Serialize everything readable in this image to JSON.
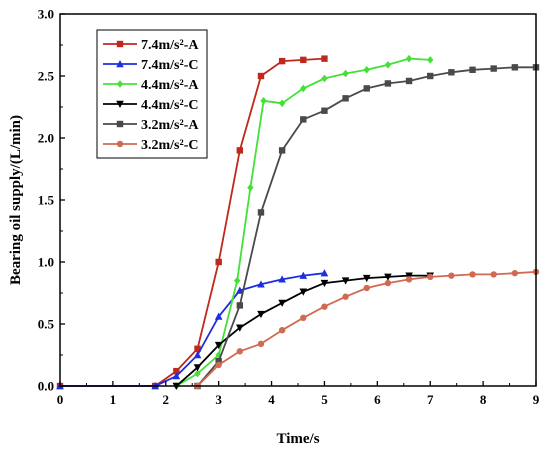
{
  "chart_data": {
    "type": "line",
    "xlabel": "Time/s",
    "ylabel": "Bearing oil supply/(L/min)",
    "xlim": [
      0,
      9
    ],
    "ylim": [
      0,
      3.0
    ],
    "xticks": [
      0,
      1,
      2,
      3,
      4,
      5,
      6,
      7,
      8,
      9
    ],
    "yticks": [
      0.0,
      0.5,
      1.0,
      1.5,
      2.0,
      2.5,
      3.0
    ],
    "ytick_labels": [
      "0.0",
      "0.5",
      "1.0",
      "1.5",
      "2.0",
      "2.5",
      "3.0"
    ],
    "legend_position": "top-left",
    "grid": false,
    "series": [
      {
        "name": "7.4m/s²-A",
        "color": "#c0281c",
        "marker": "square",
        "x": [
          0,
          1.8,
          2.2,
          2.6,
          3.0,
          3.4,
          3.8,
          4.2,
          4.6,
          5.0
        ],
        "y": [
          0,
          0,
          0.12,
          0.3,
          1.0,
          1.9,
          2.5,
          2.62,
          2.63,
          2.64
        ]
      },
      {
        "name": "7.4m/s²-C",
        "color": "#1c2ee0",
        "marker": "triangle-up",
        "x": [
          0,
          1.8,
          2.2,
          2.6,
          3.0,
          3.4,
          3.8,
          4.2,
          4.6,
          5.0
        ],
        "y": [
          0,
          0,
          0.08,
          0.25,
          0.56,
          0.77,
          0.82,
          0.86,
          0.89,
          0.91
        ]
      },
      {
        "name": "4.4m/s²-A",
        "color": "#44e038",
        "marker": "diamond",
        "x": [
          2.2,
          2.6,
          3.0,
          3.35,
          3.6,
          3.85,
          4.2,
          4.6,
          5.0,
          5.4,
          5.8,
          6.2,
          6.6,
          7.0
        ],
        "y": [
          0,
          0.1,
          0.25,
          0.85,
          1.6,
          2.3,
          2.28,
          2.4,
          2.48,
          2.52,
          2.55,
          2.59,
          2.64,
          2.63
        ]
      },
      {
        "name": "4.4m/s²-C",
        "color": "#000000",
        "marker": "triangle-down",
        "x": [
          2.2,
          2.6,
          3.0,
          3.4,
          3.8,
          4.2,
          4.6,
          5.0,
          5.4,
          5.8,
          6.2,
          6.6,
          7.0
        ],
        "y": [
          0,
          0.15,
          0.33,
          0.47,
          0.58,
          0.67,
          0.76,
          0.83,
          0.85,
          0.87,
          0.88,
          0.89,
          0.89
        ]
      },
      {
        "name": "3.2m/s²-A",
        "color": "#4a4a4a",
        "marker": "square",
        "x": [
          2.6,
          3.0,
          3.4,
          3.8,
          4.2,
          4.6,
          5.0,
          5.4,
          5.8,
          6.2,
          6.6,
          7.0,
          7.4,
          7.8,
          8.2,
          8.6,
          9.0
        ],
        "y": [
          0,
          0.2,
          0.65,
          1.4,
          1.9,
          2.15,
          2.22,
          2.32,
          2.4,
          2.44,
          2.46,
          2.5,
          2.53,
          2.55,
          2.56,
          2.57,
          2.57
        ]
      },
      {
        "name": "3.2m/s²-C",
        "color": "#d06a52",
        "marker": "circle",
        "x": [
          2.6,
          3.0,
          3.4,
          3.8,
          4.2,
          4.6,
          5.0,
          5.4,
          5.8,
          6.2,
          6.6,
          7.0,
          7.4,
          7.8,
          8.2,
          8.6,
          9.0
        ],
        "y": [
          0,
          0.17,
          0.28,
          0.34,
          0.45,
          0.55,
          0.64,
          0.72,
          0.79,
          0.83,
          0.86,
          0.88,
          0.89,
          0.9,
          0.9,
          0.91,
          0.92
        ]
      }
    ]
  }
}
